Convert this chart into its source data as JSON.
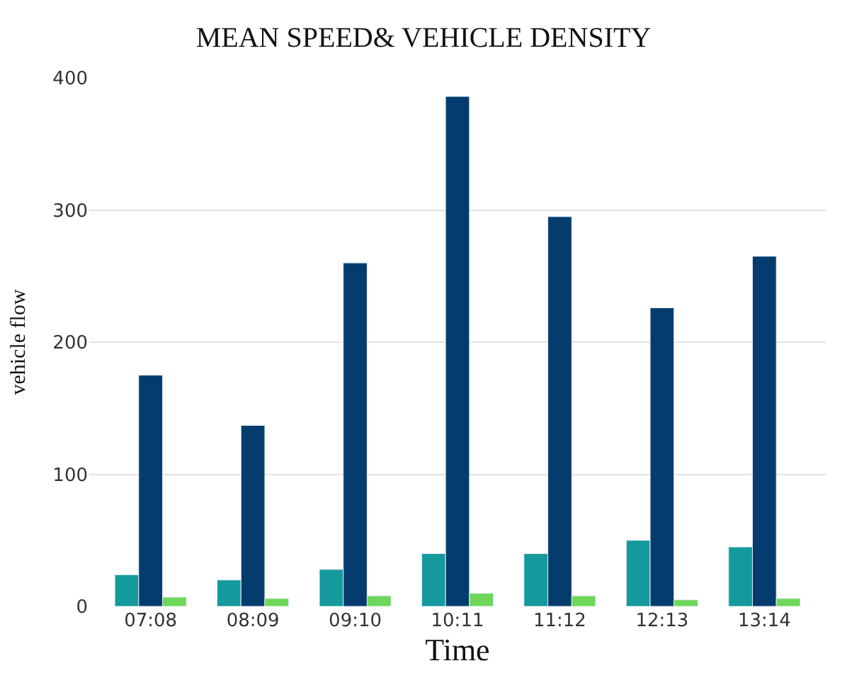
{
  "chart_data": {
    "type": "bar",
    "title": "MEAN SPEED& VEHICLE DENSITY",
    "xlabel": "Time",
    "ylabel": "vehicle flow",
    "categories": [
      "07:08",
      "08:09",
      "09:10",
      "10:11",
      "11:12",
      "12:13",
      "13:14"
    ],
    "series": [
      {
        "color": "#14999c",
        "values": [
          24,
          20,
          28,
          40,
          40,
          50,
          45
        ]
      },
      {
        "color": "#043d6d",
        "values": [
          175,
          137,
          260,
          386,
          295,
          226,
          265
        ]
      },
      {
        "color": "#6ed75a",
        "values": [
          7,
          6,
          8,
          10,
          8,
          5,
          6
        ]
      }
    ],
    "ylim": [
      0,
      400
    ],
    "yticks": [
      0,
      100,
      200,
      300,
      400
    ],
    "grid": "y"
  }
}
